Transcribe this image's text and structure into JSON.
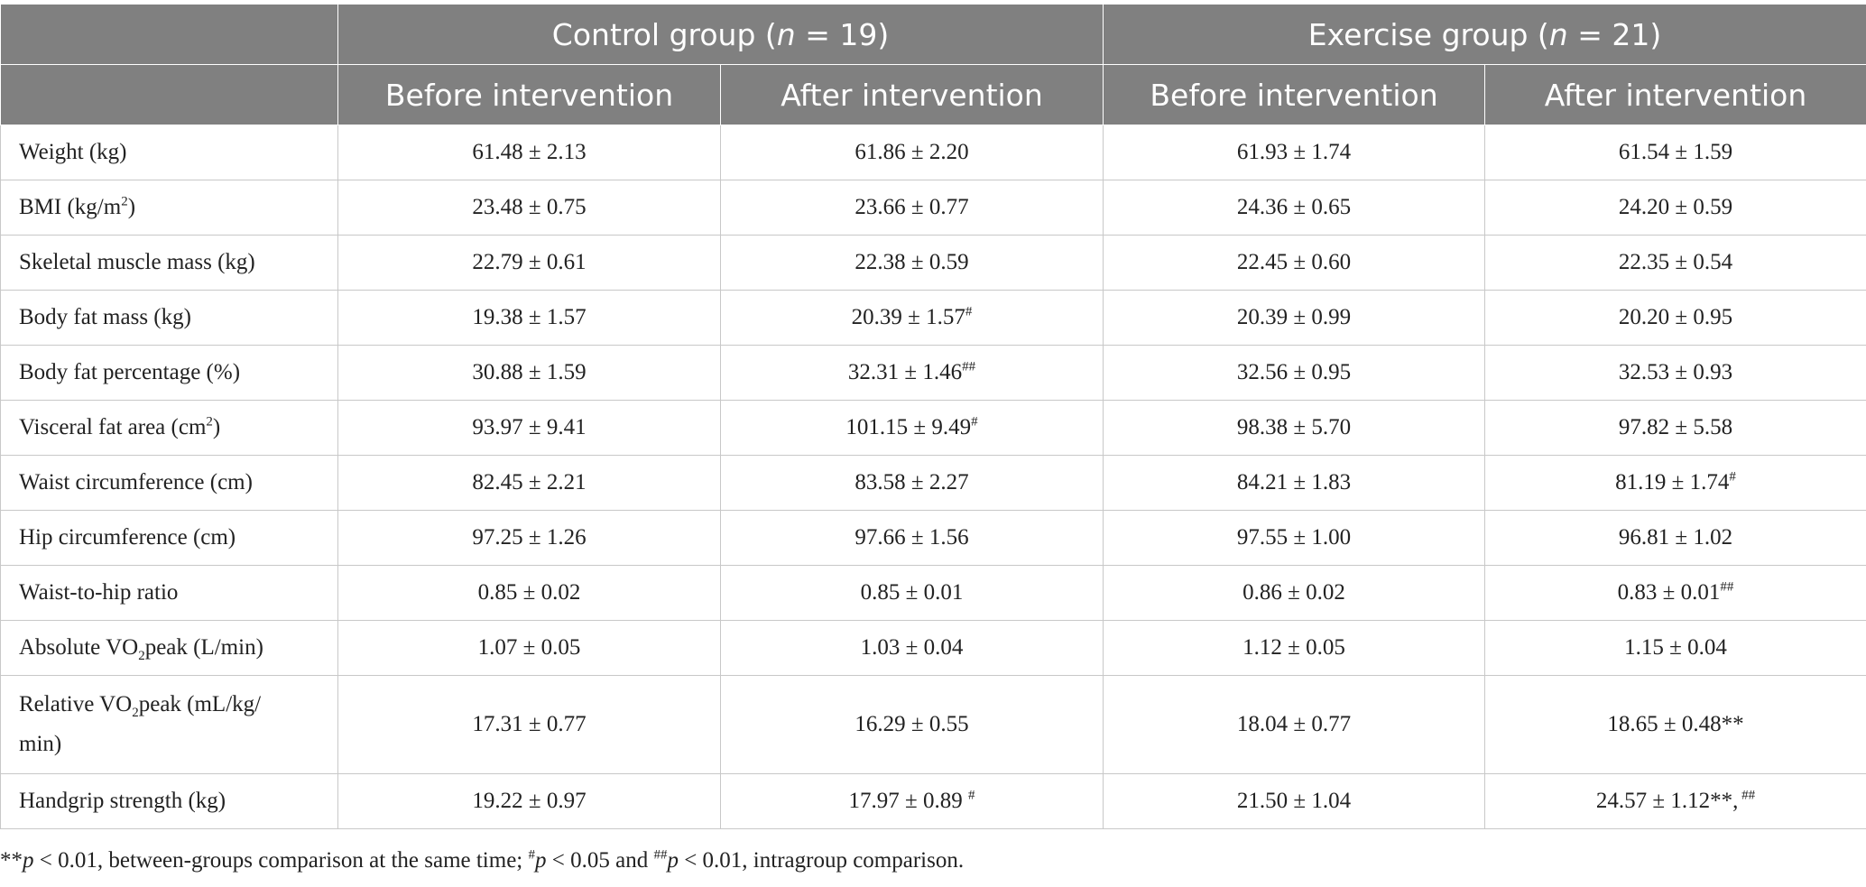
{
  "header": {
    "control_prefix": "Control group (",
    "n_symbol": "n",
    "control_suffix": " = 19)",
    "exercise_prefix": "Exercise group (",
    "exercise_suffix": " = 21)",
    "before": "Before intervention",
    "after": "After intervention"
  },
  "rows": [
    {
      "label": "Weight (kg)",
      "c_before": "61.48 ± 2.13",
      "c_after": "61.86 ± 2.20",
      "e_before": "61.93 ± 1.74",
      "e_after": "61.54 ± 1.59"
    },
    {
      "label_a": "BMI (kg/m",
      "label_sup": "2",
      "label_b": ")",
      "c_before": "23.48 ± 0.75",
      "c_after": "23.66 ± 0.77",
      "e_before": "24.36 ± 0.65",
      "e_after": "24.20 ± 0.59"
    },
    {
      "label": "Skeletal muscle mass (kg)",
      "c_before": "22.79 ± 0.61",
      "c_after": "22.38 ± 0.59",
      "e_before": "22.45 ± 0.60",
      "e_after": "22.35 ± 0.54"
    },
    {
      "label": "Body fat mass (kg)",
      "c_before": "19.38 ± 1.57",
      "c_after": "20.39 ± 1.57",
      "c_after_mark": "#",
      "e_before": "20.39 ± 0.99",
      "e_after": "20.20 ± 0.95"
    },
    {
      "label": "Body fat percentage (%)",
      "c_before": "30.88 ± 1.59",
      "c_after": "32.31 ± 1.46",
      "c_after_mark": "##",
      "e_before": "32.56 ± 0.95",
      "e_after": "32.53 ± 0.93"
    },
    {
      "label_a": "Visceral fat area (cm",
      "label_sup": "2",
      "label_b": ")",
      "c_before": "93.97 ± 9.41",
      "c_after": "101.15 ± 9.49",
      "c_after_mark": "#",
      "e_before": "98.38 ± 5.70",
      "e_after": "97.82 ± 5.58"
    },
    {
      "label": "Waist circumference (cm)",
      "c_before": "82.45 ± 2.21",
      "c_after": "83.58 ± 2.27",
      "e_before": "84.21 ± 1.83",
      "e_after": "81.19 ± 1.74",
      "e_after_mark": "#"
    },
    {
      "label": "Hip circumference (cm)",
      "c_before": "97.25 ± 1.26",
      "c_after": "97.66 ± 1.56",
      "e_before": "97.55 ± 1.00",
      "e_after": "96.81 ± 1.02"
    },
    {
      "label": "Waist-to-hip ratio",
      "c_before": "0.85 ± 0.02",
      "c_after": "0.85 ± 0.01",
      "e_before": "0.86 ± 0.02",
      "e_after": "0.83 ± 0.01",
      "e_after_mark": "##"
    },
    {
      "label_a": "Absolute VO",
      "label_sub": "2",
      "label_b": "peak (L/min)",
      "c_before": "1.07 ± 0.05",
      "c_after": "1.03 ± 0.04",
      "e_before": "1.12 ± 0.05",
      "e_after": "1.15 ± 0.04"
    },
    {
      "label_a": "Relative VO",
      "label_sub": "2",
      "label_b": "peak (mL/kg/",
      "label_c": "min)",
      "c_before": "17.31 ± 0.77",
      "c_after": "16.29 ± 0.55",
      "e_before": "18.04 ± 0.77",
      "e_after": "18.65 ± 0.48**"
    },
    {
      "label": "Handgrip strength (kg)",
      "c_before": "19.22 ± 0.97",
      "c_after": "17.97 ± 0.89 ",
      "c_after_mark": "#",
      "e_before": "21.50 ± 1.04",
      "e_after": "24.57 ± 1.12**,",
      "e_after_mark": " ##"
    }
  ],
  "footnote": {
    "a": "**",
    "p1": "p",
    "b": " < 0.01, between-groups comparison at the same time; ",
    "m1": "#",
    "p2": "p",
    "c": " < 0.05 and ",
    "m2": "##",
    "p3": "p",
    "d": " < 0.01, intragroup comparison."
  }
}
